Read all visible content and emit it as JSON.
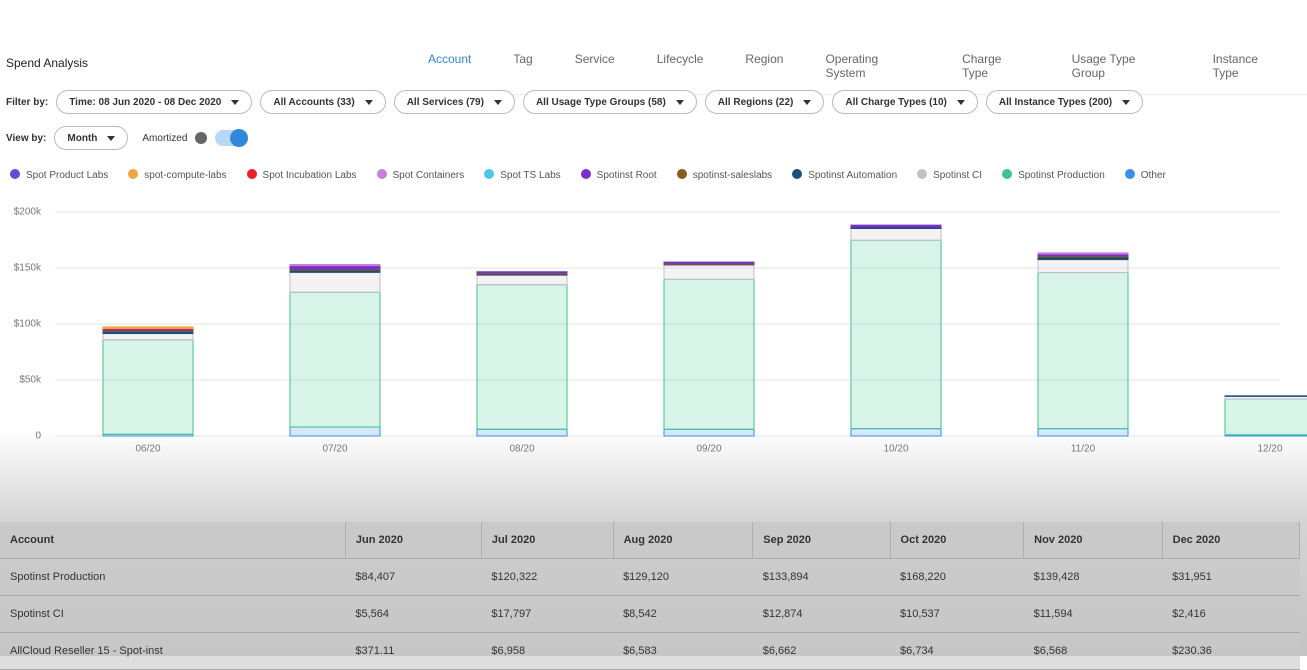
{
  "header": {
    "title": "Spend Analysis",
    "tabs": [
      "Account",
      "Tag",
      "Service",
      "Lifecycle",
      "Region",
      "Operating System",
      "Charge Type",
      "Usage Type Group",
      "Instance Type"
    ]
  },
  "filters": {
    "label": "Filter by:",
    "time": "Time: 08 Jun 2020 - 08 Dec 2020",
    "dropdowns": [
      "All Accounts (33)",
      "All Services (79)",
      "All Usage Type Groups (58)",
      "All Regions (22)",
      "All Charge Types (10)",
      "All Instance Types (200)"
    ]
  },
  "view": {
    "label": "View by:",
    "period": "Month",
    "amortized": "Amortized"
  },
  "chart_data": {
    "type": "stacked_bar",
    "categories": [
      "06/20",
      "07/20",
      "08/20",
      "09/20",
      "10/20",
      "11/20",
      "12/20"
    ],
    "ylim": [
      0,
      200000
    ],
    "yticks": [
      0,
      {
        "value": 50000,
        "label": "$50k"
      },
      {
        "value": 100000,
        "label": "$100k"
      },
      {
        "value": 150000,
        "label": "$150k"
      },
      {
        "value": 200000,
        "label": "$200k"
      }
    ],
    "grid": true,
    "series": [
      {
        "name": "Spot Product Labs",
        "color": "#5b4fd6",
        "values": [
          0,
          0,
          0,
          0,
          0,
          0,
          0
        ]
      },
      {
        "name": "spot-compute-labs",
        "color": "#f0a640",
        "values": [
          1500,
          0,
          0,
          0,
          0,
          0,
          0
        ]
      },
      {
        "name": "Spot Incubation Labs",
        "color": "#e8202a",
        "values": [
          500,
          0,
          0,
          0,
          0,
          0,
          0
        ]
      },
      {
        "name": "Spot Containers",
        "color": "#c97fd8",
        "values": [
          0,
          1000,
          0,
          0,
          0,
          1000,
          0
        ]
      },
      {
        "name": "Spot TS Labs",
        "color": "#4bc8e8",
        "values": [
          0,
          0,
          0,
          0,
          0,
          0,
          0
        ]
      },
      {
        "name": "Spotinst Root",
        "color": "#7b2fc9",
        "values": [
          1000,
          3000,
          1000,
          1000,
          1500,
          1500,
          0
        ]
      },
      {
        "name": "spotinst-saleslabs",
        "color": "#8a5a1e",
        "values": [
          1000,
          1000,
          1000,
          1000,
          0,
          1000,
          0
        ]
      },
      {
        "name": "Spotinst Automation",
        "color": "#1a4f7a",
        "values": [
          2000,
          2000,
          1000,
          500,
          1500,
          2500,
          500
        ]
      },
      {
        "name": "Spotinst CI",
        "color": "#c8bec8",
        "values": [
          5564,
          17797,
          8542,
          12874,
          10537,
          11594,
          2416
        ]
      },
      {
        "name": "Spotinst Production",
        "color": "#3cc68e",
        "values": [
          84407,
          120322,
          129120,
          133894,
          168220,
          139428,
          31951
        ]
      },
      {
        "name": "Other",
        "color": "#3b8fe8",
        "values": [
          1500,
          8000,
          6000,
          6000,
          6500,
          6500,
          1000
        ]
      }
    ]
  },
  "table": {
    "columns": [
      "Account",
      "Jun 2020",
      "Jul 2020",
      "Aug 2020",
      "Sep 2020",
      "Oct 2020",
      "Nov 2020",
      "Dec 2020"
    ],
    "rows": [
      [
        "Spotinst Production",
        "$84,407",
        "$120,322",
        "$129,120",
        "$133,894",
        "$168,220",
        "$139,428",
        "$31,951"
      ],
      [
        "Spotinst CI",
        "$5,564",
        "$17,797",
        "$8,542",
        "$12,874",
        "$10,537",
        "$11,594",
        "$2,416"
      ],
      [
        "AllCloud Reseller 15 - Spot-inst",
        "$371.11",
        "$6,958",
        "$6,583",
        "$6,662",
        "$6,734",
        "$6,568",
        "$230.36"
      ]
    ]
  }
}
